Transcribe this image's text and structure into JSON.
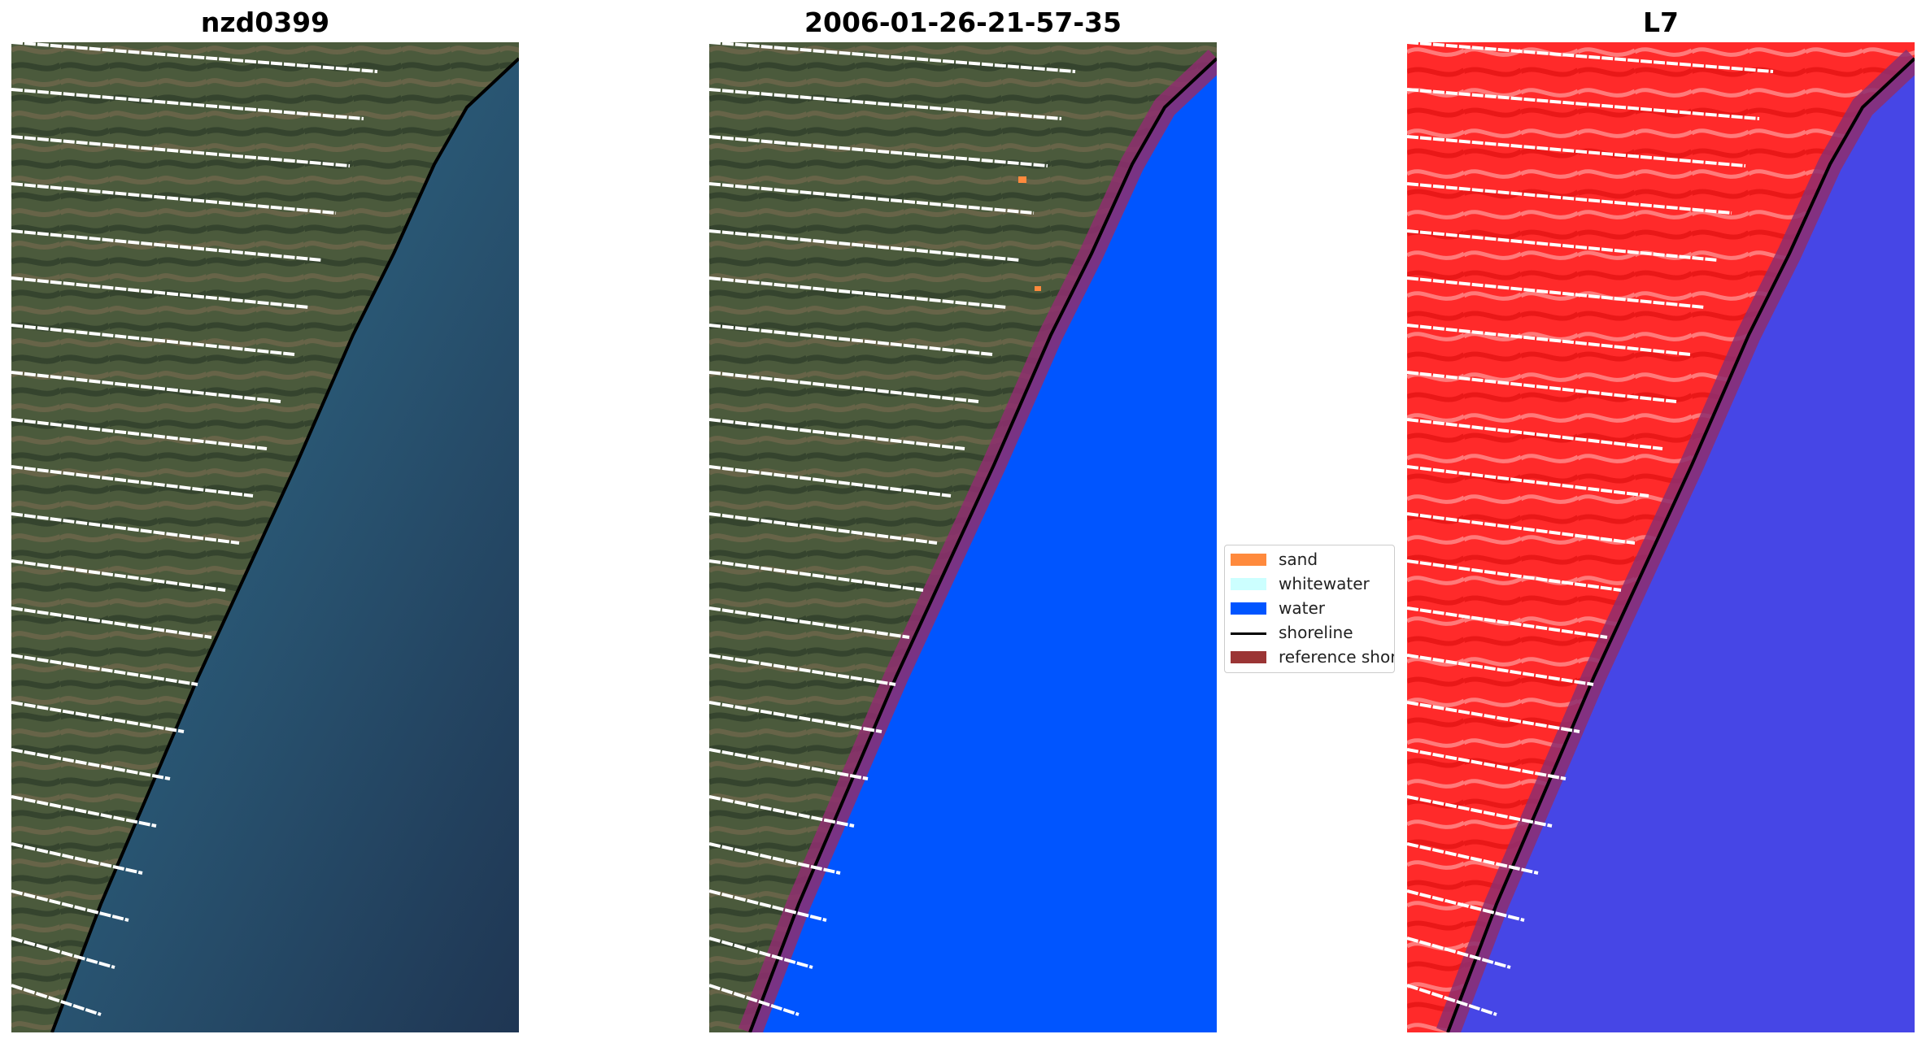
{
  "panels": [
    {
      "title": "nzd0399"
    },
    {
      "title": "2006-01-26-21-57-35"
    },
    {
      "title": "L7"
    }
  ],
  "legend": {
    "items": [
      {
        "label": "sand",
        "color": "#ff8a3d",
        "kind": "patch"
      },
      {
        "label": "whitewater",
        "color": "#ccffff",
        "kind": "patch"
      },
      {
        "label": "water",
        "color": "#0055ff",
        "kind": "patch"
      },
      {
        "label": "shoreline",
        "color": "#000000",
        "kind": "line"
      },
      {
        "label": "reference shore...",
        "color": "#9b3535",
        "kind": "patch"
      }
    ]
  },
  "colors": {
    "land_rgb": "#4e5a3c",
    "sea_rgb": "#243f5e",
    "water_class": "#0055ff",
    "land_false": "#ff2a2a",
    "sea_false": "#4646e6",
    "reference_buffer": "#8e2e6e"
  }
}
